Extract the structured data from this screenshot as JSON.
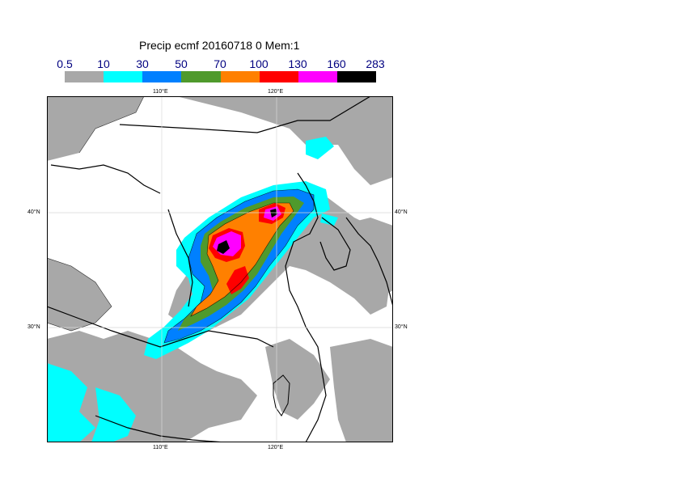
{
  "title": "Precip ecmf 20160718 0 Mem:1",
  "colorbar": {
    "labels": [
      "0.5",
      "10",
      "30",
      "50",
      "70",
      "100",
      "130",
      "160",
      "283"
    ],
    "colors": [
      "#a8a8a8",
      "#00ffff",
      "#0080ff",
      "#4f9a2c",
      "#ff8000",
      "#ff0000",
      "#ff00ff",
      "#000000"
    ]
  },
  "axes": {
    "top_lon_labels": [
      "110°E",
      "120°E"
    ],
    "bottom_lon_labels": [
      "110°E",
      "120°E"
    ],
    "left_lat_labels": [
      "40°N",
      "30°N"
    ],
    "right_lat_labels": [
      "40°N",
      "30°N"
    ]
  }
}
